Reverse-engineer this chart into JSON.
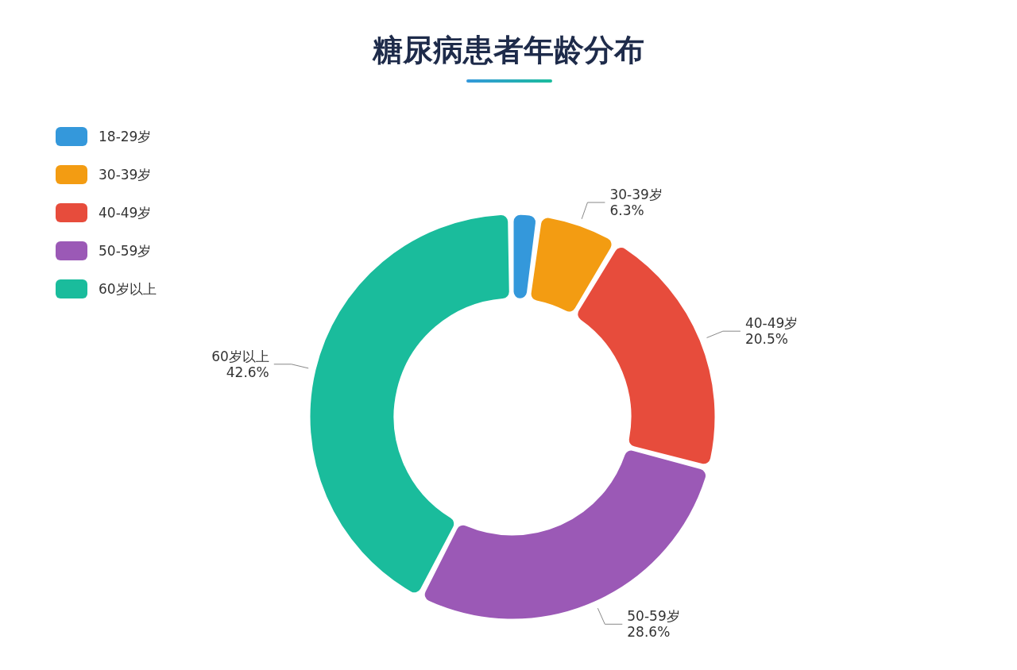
{
  "chart_data": {
    "type": "donut",
    "title": "糖尿病患者年龄分布",
    "categories": [
      "18-29岁",
      "30-39岁",
      "40-49岁",
      "50-59岁",
      "60岁以上"
    ],
    "values": [
      2.0,
      6.3,
      20.5,
      28.6,
      42.6
    ],
    "value_labels": [
      null,
      "6.3%",
      "20.5%",
      "28.6%",
      "42.6%"
    ],
    "colors": [
      "#3498db",
      "#f39c12",
      "#e74c3c",
      "#9b59b6",
      "#1abc9c"
    ],
    "legend": "top left"
  }
}
